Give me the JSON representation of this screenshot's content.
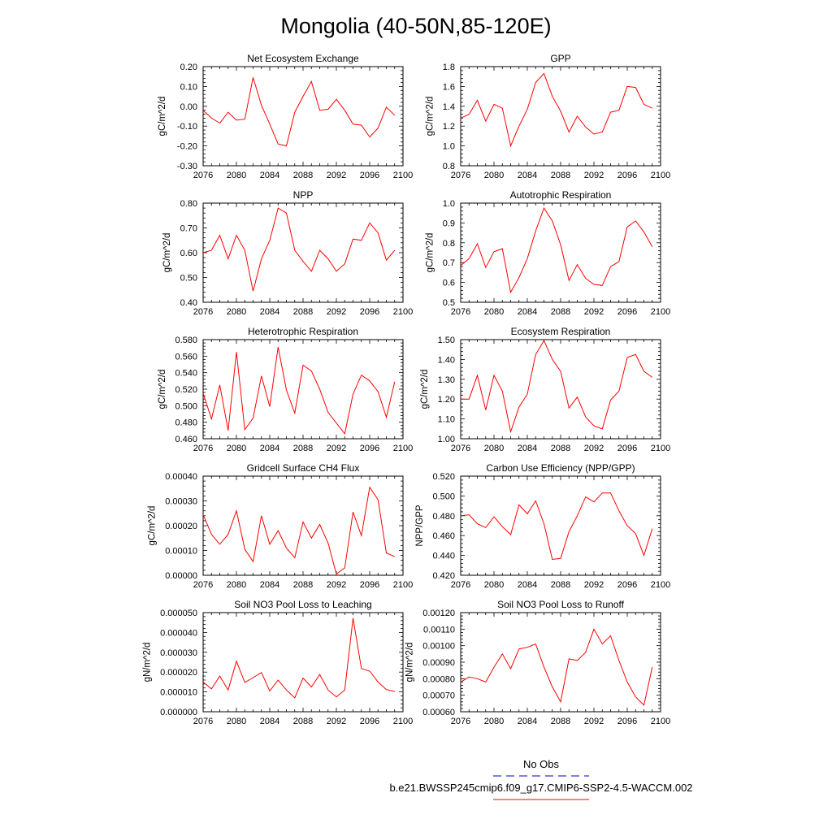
{
  "figure": {
    "title": "Mongolia (40-50N,85-120E)"
  },
  "legend": {
    "obs_label": "No Obs",
    "obs_color": "#3333cc",
    "case_label": "b.e21.BWSSP245cmip6.f09_g17.CMIP6-SSP2-4.5-WACCM.002",
    "case_color": "#ff0000"
  },
  "chart_data": [
    {
      "type": "line",
      "title": "Net Ecosystem Exchange",
      "ylabel": "gC/m^2/d",
      "xlim": [
        2076,
        2100
      ],
      "ylim": [
        -0.3,
        0.2
      ],
      "xticks": [
        "2076",
        "2080",
        "2084",
        "2088",
        "2092",
        "2096",
        "2100"
      ],
      "yticks": [
        "-0.30",
        "-0.20",
        "-0.10",
        "0.00",
        "0.10",
        "0.20"
      ],
      "x": [
        2076,
        2077,
        2078,
        2079,
        2080,
        2081,
        2082,
        2083,
        2084,
        2085,
        2086,
        2087,
        2088,
        2089,
        2090,
        2091,
        2092,
        2093,
        2094,
        2095,
        2096,
        2097,
        2098,
        2099
      ],
      "series": [
        {
          "color": "#ff0000",
          "values": [
            -0.02,
            -0.06,
            -0.085,
            -0.03,
            -0.07,
            -0.065,
            0.145,
            0.005,
            -0.09,
            -0.19,
            -0.2,
            -0.03,
            0.05,
            0.125,
            -0.02,
            -0.015,
            0.035,
            -0.02,
            -0.09,
            -0.095,
            -0.155,
            -0.11,
            -0.005,
            -0.045
          ]
        }
      ]
    },
    {
      "type": "line",
      "title": "GPP",
      "ylabel": "gC/m^2/d",
      "xlim": [
        2076,
        2100
      ],
      "ylim": [
        0.8,
        1.8
      ],
      "xticks": [
        "2076",
        "2080",
        "2084",
        "2088",
        "2092",
        "2096",
        "2100"
      ],
      "yticks": [
        "0.8",
        "1.0",
        "1.2",
        "1.4",
        "1.6",
        "1.8"
      ],
      "x": [
        2076,
        2077,
        2078,
        2079,
        2080,
        2081,
        2082,
        2083,
        2084,
        2085,
        2086,
        2087,
        2088,
        2089,
        2090,
        2091,
        2092,
        2093,
        2094,
        2095,
        2096,
        2097,
        2098,
        2099
      ],
      "series": [
        {
          "color": "#ff0000",
          "values": [
            1.28,
            1.32,
            1.46,
            1.25,
            1.42,
            1.38,
            1.0,
            1.2,
            1.37,
            1.64,
            1.73,
            1.5,
            1.35,
            1.14,
            1.3,
            1.19,
            1.12,
            1.14,
            1.34,
            1.36,
            1.6,
            1.59,
            1.42,
            1.38
          ]
        }
      ]
    },
    {
      "type": "line",
      "title": "NPP",
      "ylabel": "gC/m^2/d",
      "xlim": [
        2076,
        2100
      ],
      "ylim": [
        0.4,
        0.8
      ],
      "xticks": [
        "2076",
        "2080",
        "2084",
        "2088",
        "2092",
        "2096",
        "2100"
      ],
      "yticks": [
        "0.40",
        "0.50",
        "0.60",
        "0.70",
        "0.80"
      ],
      "x": [
        2076,
        2077,
        2078,
        2079,
        2080,
        2081,
        2082,
        2083,
        2084,
        2085,
        2086,
        2087,
        2088,
        2089,
        2090,
        2091,
        2092,
        2093,
        2094,
        2095,
        2096,
        2097,
        2098,
        2099
      ],
      "series": [
        {
          "color": "#ff0000",
          "values": [
            0.6,
            0.61,
            0.67,
            0.575,
            0.67,
            0.61,
            0.445,
            0.575,
            0.65,
            0.78,
            0.76,
            0.61,
            0.565,
            0.525,
            0.61,
            0.575,
            0.525,
            0.555,
            0.655,
            0.65,
            0.72,
            0.68,
            0.57,
            0.61
          ]
        }
      ]
    },
    {
      "type": "line",
      "title": "Autotrophic Respiration",
      "ylabel": "gC/m^2/d",
      "xlim": [
        2076,
        2100
      ],
      "ylim": [
        0.5,
        1.0
      ],
      "xticks": [
        "2076",
        "2080",
        "2084",
        "2088",
        "2092",
        "2096",
        "2100"
      ],
      "yticks": [
        "0.5",
        "0.6",
        "0.7",
        "0.8",
        "0.9",
        "1.0"
      ],
      "x": [
        2076,
        2077,
        2078,
        2079,
        2080,
        2081,
        2082,
        2083,
        2084,
        2085,
        2086,
        2087,
        2088,
        2089,
        2090,
        2091,
        2092,
        2093,
        2094,
        2095,
        2096,
        2097,
        2098,
        2099
      ],
      "series": [
        {
          "color": "#ff0000",
          "values": [
            0.685,
            0.72,
            0.795,
            0.675,
            0.755,
            0.77,
            0.55,
            0.625,
            0.72,
            0.86,
            0.975,
            0.91,
            0.79,
            0.61,
            0.69,
            0.62,
            0.59,
            0.585,
            0.68,
            0.705,
            0.88,
            0.91,
            0.855,
            0.78
          ]
        }
      ]
    },
    {
      "type": "line",
      "title": "Heterotrophic Respiration",
      "ylabel": "gC/m^2/d",
      "xlim": [
        2076,
        2100
      ],
      "ylim": [
        0.46,
        0.58
      ],
      "xticks": [
        "2076",
        "2080",
        "2084",
        "2088",
        "2092",
        "2096",
        "2100"
      ],
      "yticks": [
        "0.460",
        "0.480",
        "0.500",
        "0.520",
        "0.540",
        "0.560",
        "0.580"
      ],
      "x": [
        2076,
        2077,
        2078,
        2079,
        2080,
        2081,
        2082,
        2083,
        2084,
        2085,
        2086,
        2087,
        2088,
        2089,
        2090,
        2091,
        2092,
        2093,
        2094,
        2095,
        2096,
        2097,
        2098,
        2099
      ],
      "series": [
        {
          "color": "#ff0000",
          "values": [
            0.515,
            0.484,
            0.525,
            0.47,
            0.565,
            0.471,
            0.485,
            0.536,
            0.499,
            0.571,
            0.519,
            0.491,
            0.549,
            0.542,
            0.52,
            0.492,
            0.479,
            0.466,
            0.514,
            0.537,
            0.53,
            0.517,
            0.486,
            0.529
          ]
        }
      ]
    },
    {
      "type": "line",
      "title": "Ecosystem Respiration",
      "ylabel": "gC/m^2/d",
      "xlim": [
        2076,
        2100
      ],
      "ylim": [
        1.0,
        1.5
      ],
      "xticks": [
        "2076",
        "2080",
        "2084",
        "2088",
        "2092",
        "2096",
        "2100"
      ],
      "yticks": [
        "1.00",
        "1.10",
        "1.20",
        "1.30",
        "1.40",
        "1.50"
      ],
      "x": [
        2076,
        2077,
        2078,
        2079,
        2080,
        2081,
        2082,
        2083,
        2084,
        2085,
        2086,
        2087,
        2088,
        2089,
        2090,
        2091,
        2092,
        2093,
        2094,
        2095,
        2096,
        2097,
        2098,
        2099
      ],
      "series": [
        {
          "color": "#ff0000",
          "values": [
            1.2,
            1.2,
            1.32,
            1.145,
            1.32,
            1.24,
            1.035,
            1.16,
            1.225,
            1.425,
            1.495,
            1.4,
            1.34,
            1.155,
            1.21,
            1.11,
            1.065,
            1.05,
            1.195,
            1.24,
            1.41,
            1.425,
            1.34,
            1.31
          ]
        }
      ]
    },
    {
      "type": "line",
      "title": "Gridcell Surface CH4 Flux",
      "ylabel": "gC/m^2/d",
      "xlim": [
        2076,
        2100
      ],
      "ylim": [
        0.0,
        0.0004
      ],
      "xticks": [
        "2076",
        "2080",
        "2084",
        "2088",
        "2092",
        "2096",
        "2100"
      ],
      "yticks": [
        "0.00000",
        "0.00010",
        "0.00020",
        "0.00030",
        "0.00040"
      ],
      "x": [
        2076,
        2077,
        2078,
        2079,
        2080,
        2081,
        2082,
        2083,
        2084,
        2085,
        2086,
        2087,
        2088,
        2089,
        2090,
        2091,
        2092,
        2093,
        2094,
        2095,
        2096,
        2097,
        2098,
        2099
      ],
      "series": [
        {
          "color": "#ff0000",
          "values": [
            0.000245,
            0.000165,
            0.000125,
            0.000165,
            0.00026,
            0.000105,
            5.5e-05,
            0.00024,
            0.000125,
            0.00018,
            0.00011,
            7e-05,
            0.000215,
            0.00015,
            0.000205,
            0.00013,
            5e-06,
            3e-05,
            0.000255,
            0.00016,
            0.000355,
            0.000305,
            9e-05,
            7.5e-05
          ]
        }
      ]
    },
    {
      "type": "line",
      "title": "Carbon Use Efficiency (NPP/GPP)",
      "ylabel": "NPP/GPP",
      "xlim": [
        2076,
        2100
      ],
      "ylim": [
        0.42,
        0.52
      ],
      "xticks": [
        "2076",
        "2080",
        "2084",
        "2088",
        "2092",
        "2096",
        "2100"
      ],
      "yticks": [
        "0.420",
        "0.440",
        "0.460",
        "0.480",
        "0.500",
        "0.520"
      ],
      "x": [
        2076,
        2077,
        2078,
        2079,
        2080,
        2081,
        2082,
        2083,
        2084,
        2085,
        2086,
        2087,
        2088,
        2089,
        2090,
        2091,
        2092,
        2093,
        2094,
        2095,
        2096,
        2097,
        2098,
        2099
      ],
      "series": [
        {
          "color": "#ff0000",
          "values": [
            0.48,
            0.481,
            0.472,
            0.468,
            0.479,
            0.469,
            0.461,
            0.491,
            0.482,
            0.495,
            0.472,
            0.436,
            0.437,
            0.464,
            0.48,
            0.499,
            0.494,
            0.503,
            0.503,
            0.485,
            0.47,
            0.462,
            0.44,
            0.467
          ]
        }
      ]
    },
    {
      "type": "line",
      "title": "Soil NO3 Pool Loss to Leaching",
      "ylabel": "gN/m^2/d",
      "xlim": [
        2076,
        2100
      ],
      "ylim": [
        0.0,
        5e-05
      ],
      "xticks": [
        "2076",
        "2080",
        "2084",
        "2088",
        "2092",
        "2096",
        "2100"
      ],
      "yticks": [
        "0.000000",
        "0.000010",
        "0.000020",
        "0.000030",
        "0.000040",
        "0.000050"
      ],
      "x": [
        2076,
        2077,
        2078,
        2079,
        2080,
        2081,
        2082,
        2083,
        2084,
        2085,
        2086,
        2087,
        2088,
        2089,
        2090,
        2091,
        2092,
        2093,
        2094,
        2095,
        2096,
        2097,
        2098,
        2099
      ],
      "series": [
        {
          "color": "#ff0000",
          "values": [
            1.5e-05,
            1.15e-05,
            1.8e-05,
            1.1e-05,
            2.55e-05,
            1.48e-05,
            1.72e-05,
            1.98e-05,
            1.05e-05,
            1.6e-05,
            1.1e-05,
            7e-06,
            1.7e-05,
            1.25e-05,
            1.88e-05,
            1.1e-05,
            7.5e-06,
            1.1e-05,
            4.72e-05,
            2.18e-05,
            2.05e-05,
            1.5e-05,
            1.12e-05,
            1.02e-05
          ]
        }
      ]
    },
    {
      "type": "line",
      "title": "Soil NO3 Pool Loss to Runoff",
      "ylabel": "gN/m^2/d",
      "xlim": [
        2076,
        2100
      ],
      "ylim": [
        0.0006,
        0.0012
      ],
      "xticks": [
        "2076",
        "2080",
        "2084",
        "2088",
        "2092",
        "2096",
        "2100"
      ],
      "yticks": [
        "0.00060",
        "0.00070",
        "0.00080",
        "0.00090",
        "0.00100",
        "0.00110",
        "0.00120"
      ],
      "x": [
        2076,
        2077,
        2078,
        2079,
        2080,
        2081,
        2082,
        2083,
        2084,
        2085,
        2086,
        2087,
        2088,
        2089,
        2090,
        2091,
        2092,
        2093,
        2094,
        2095,
        2096,
        2097,
        2098,
        2099
      ],
      "series": [
        {
          "color": "#ff0000",
          "values": [
            0.00078,
            0.00081,
            0.0008,
            0.00078,
            0.00087,
            0.00095,
            0.00086,
            0.00098,
            0.00099,
            0.00101,
            0.00087,
            0.00075,
            0.00066,
            0.00092,
            0.00091,
            0.00096,
            0.0011,
            0.00101,
            0.00106,
            0.00091,
            0.00078,
            0.00069,
            0.00064,
            0.00087
          ]
        }
      ]
    }
  ]
}
